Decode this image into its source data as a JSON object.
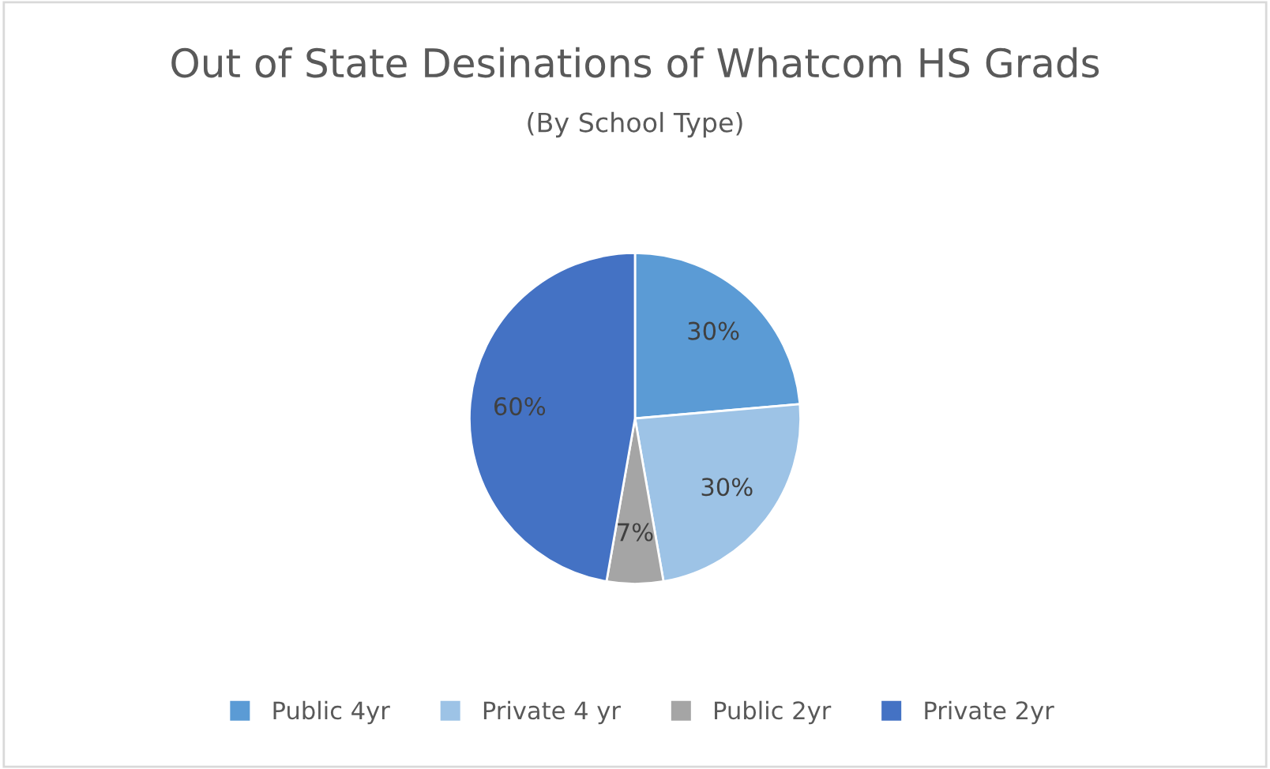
{
  "chart_data": {
    "type": "pie",
    "title": "Out of State Desinations of Whatcom HS Grads",
    "subtitle": "(By School Type)",
    "categories": [
      "Public 4yr",
      "Private 4 yr",
      "Public 2yr",
      "Private 2yr"
    ],
    "values": [
      30,
      30,
      7,
      60
    ],
    "colors": [
      "#5b9bd5",
      "#9dc3e6",
      "#a5a5a5",
      "#4472c4"
    ],
    "value_labels": [
      "30%",
      "30%",
      "7%",
      "60%"
    ],
    "legend": "bottom"
  }
}
